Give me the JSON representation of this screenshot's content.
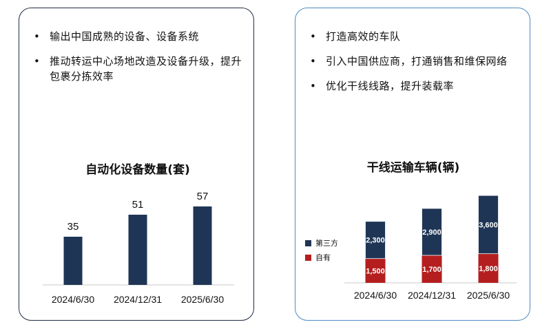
{
  "left_panel": {
    "bullets": [
      "输出中国成熟的设备、设备系统",
      "推动转运中心场地改造及设备升级，提升包裹分拣效率"
    ]
  },
  "right_panel": {
    "bullets": [
      "打造高效的车队",
      "引入中国供应商，打通销售和维保网络",
      "优化干线线路，提升装载率"
    ]
  },
  "colors": {
    "navy": "#1f3556",
    "red": "#b41e1e"
  },
  "chart_data": [
    {
      "type": "bar",
      "title": "自动化设备数量(套)",
      "categories": [
        "2024/6/30",
        "2024/12/31",
        "2025/6/30"
      ],
      "values": [
        35,
        51,
        57
      ],
      "ylim": [
        0,
        60
      ]
    },
    {
      "type": "bar",
      "stacked": true,
      "title": "干线运输车辆(辆)",
      "categories": [
        "2024/6/30",
        "2024/12/31",
        "2025/6/30"
      ],
      "series": [
        {
          "name": "自有",
          "values": [
            1500,
            1700,
            1800
          ],
          "labels": [
            "1,500",
            "1,700",
            "1,800"
          ]
        },
        {
          "name": "第三方",
          "values": [
            2300,
            2900,
            3600
          ],
          "labels": [
            "2,300",
            "2,900",
            "3,600"
          ]
        }
      ],
      "ylim": [
        0,
        5600
      ],
      "legend": "left"
    }
  ]
}
